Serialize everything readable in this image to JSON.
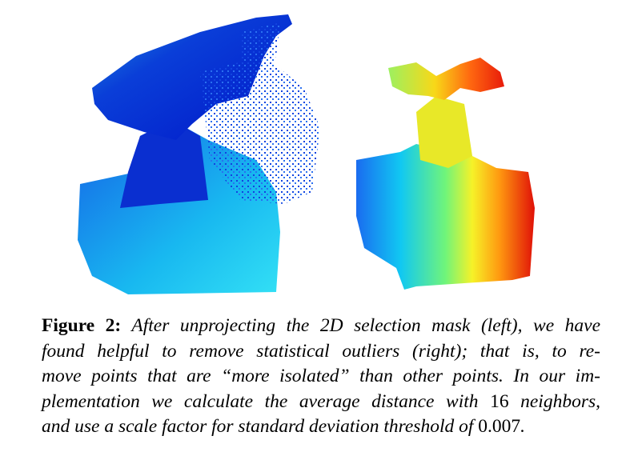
{
  "figure": {
    "label": "Figure 2:",
    "caption": {
      "line_1": "After unprojecting the 2D selection mask (left), we have",
      "line_2": "found helpful to remove statistical outliers (right); that is, to re-",
      "line_3": "move points that are “more isolated” than other points. In our im-",
      "line_4a": "plementation we calculate the average distance with",
      "line_4b": "16",
      "line_4c": "neighbors,",
      "line_5a": "and use a scale factor for standard deviation threshold of",
      "line_5b": "0.007",
      "line_5c": "."
    }
  }
}
